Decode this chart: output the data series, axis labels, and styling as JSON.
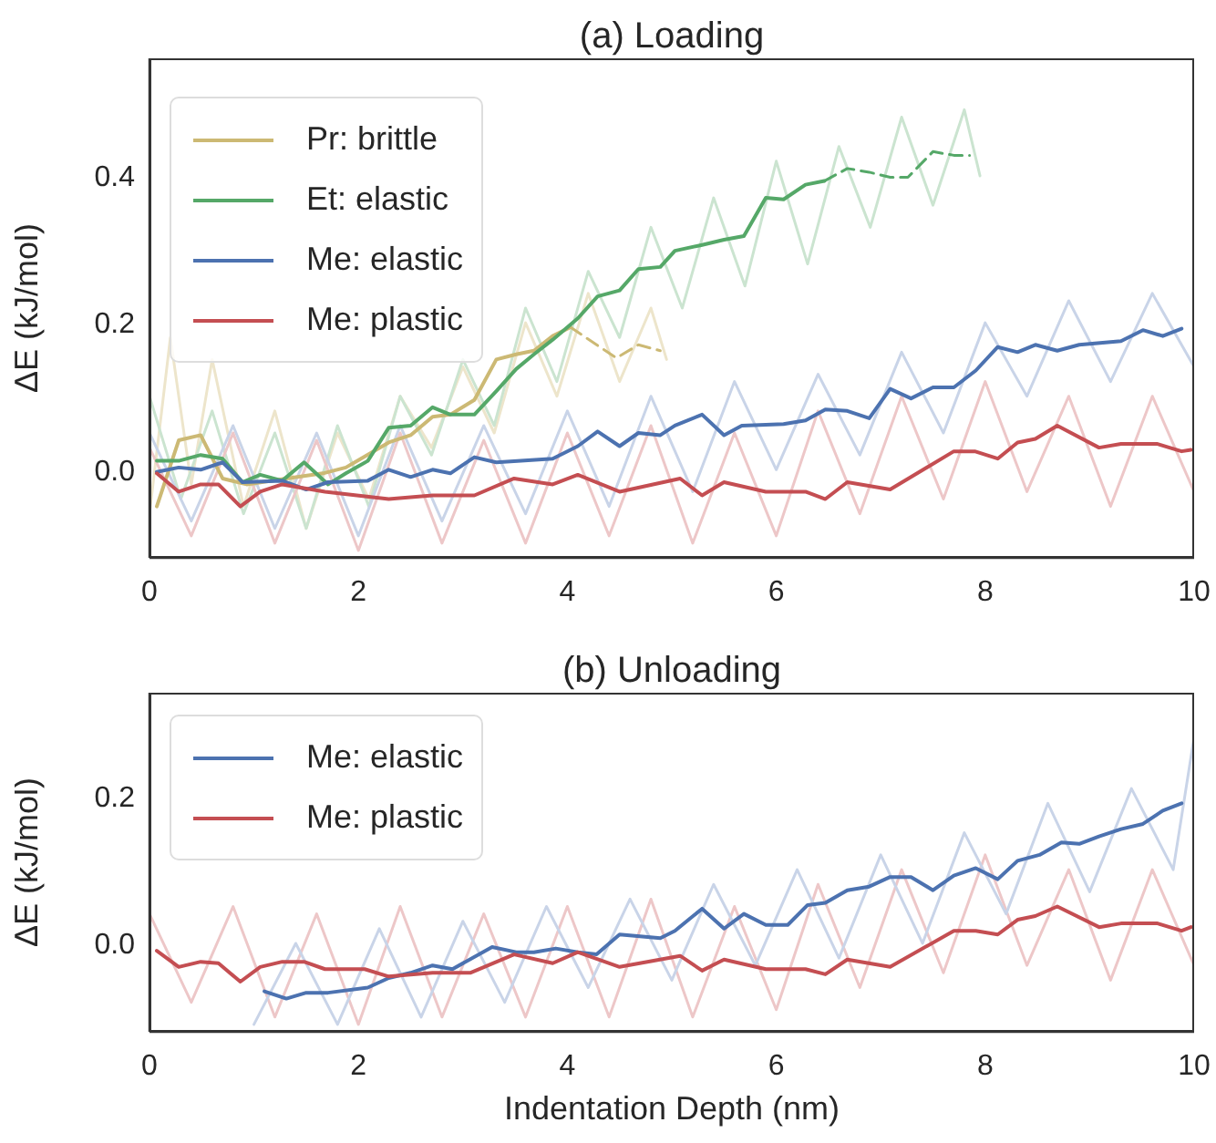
{
  "chart_data": [
    {
      "type": "line",
      "title": "(a) Loading",
      "ylabel": "ΔE (kJ/mol)",
      "xlim": [
        0,
        10
      ],
      "xticks": [
        0,
        2,
        4,
        6,
        8,
        10
      ],
      "ylim": [
        -0.12,
        0.56
      ],
      "yticks": [
        {
          "value": 0,
          "label": "0.0"
        },
        {
          "value": 0.2,
          "label": "0.2"
        },
        {
          "value": 0.4,
          "label": "0.4"
        }
      ],
      "grid": false,
      "legend": "top left",
      "marker": "none",
      "line_style": "solid",
      "series": [
        {
          "color": "#ede5cb",
          "x": [
            0,
            0.2,
            0.4,
            0.6,
            0.9,
            1.2,
            1.5,
            1.8,
            2.1,
            2.4,
            2.7,
            3.0,
            3.3,
            3.6,
            3.9,
            4.2,
            4.5,
            4.8,
            4.95
          ],
          "values": [
            -0.06,
            0.18,
            -0.02,
            0.15,
            -0.05,
            0.08,
            -0.08,
            0.05,
            -0.04,
            0.1,
            0.03,
            0.14,
            0.05,
            0.2,
            0.1,
            0.24,
            0.12,
            0.22,
            0.15
          ]
        },
        {
          "color": "#cbe4d0",
          "x": [
            0,
            0.3,
            0.6,
            0.9,
            1.2,
            1.5,
            1.8,
            2.1,
            2.4,
            2.7,
            3.0,
            3.3,
            3.6,
            3.9,
            4.2,
            4.5,
            4.8,
            5.1,
            5.4,
            5.7,
            6.0,
            6.3,
            6.6,
            6.9,
            7.2,
            7.5,
            7.8,
            7.95
          ],
          "values": [
            0.1,
            -0.04,
            0.08,
            -0.06,
            0.05,
            -0.08,
            0.06,
            -0.05,
            0.1,
            0.02,
            0.15,
            0.06,
            0.22,
            0.12,
            0.27,
            0.18,
            0.33,
            0.22,
            0.37,
            0.25,
            0.42,
            0.28,
            0.44,
            0.33,
            0.48,
            0.36,
            0.49,
            0.4
          ]
        },
        {
          "color": "#c9d4e8",
          "x": [
            0,
            0.4,
            0.8,
            1.2,
            1.6,
            2.0,
            2.4,
            2.8,
            3.2,
            3.6,
            4.0,
            4.4,
            4.8,
            5.2,
            5.6,
            6.0,
            6.4,
            6.8,
            7.2,
            7.6,
            8.0,
            8.4,
            8.8,
            9.2,
            9.6,
            10.0
          ],
          "values": [
            0.05,
            -0.07,
            0.06,
            -0.08,
            0.05,
            -0.09,
            0.06,
            -0.07,
            0.06,
            -0.06,
            0.08,
            -0.05,
            0.1,
            -0.03,
            0.12,
            0.0,
            0.13,
            0.02,
            0.16,
            0.05,
            0.2,
            0.1,
            0.23,
            0.12,
            0.24,
            0.14
          ]
        },
        {
          "color": "#edc7c8",
          "x": [
            0,
            0.4,
            0.8,
            1.2,
            1.6,
            2.0,
            2.4,
            2.8,
            3.2,
            3.6,
            4.0,
            4.4,
            4.8,
            5.2,
            5.6,
            6.0,
            6.4,
            6.8,
            7.2,
            7.6,
            8.0,
            8.4,
            8.8,
            9.2,
            9.6,
            10.0
          ],
          "values": [
            0.03,
            -0.09,
            0.05,
            -0.1,
            0.04,
            -0.11,
            0.05,
            -0.1,
            0.04,
            -0.1,
            0.05,
            -0.09,
            0.06,
            -0.1,
            0.05,
            -0.09,
            0.08,
            -0.06,
            0.1,
            -0.04,
            0.12,
            -0.03,
            0.1,
            -0.05,
            0.1,
            -0.03
          ]
        },
        {
          "name": "Pr: brittle",
          "color": "#ccb974",
          "x": [
            0.07,
            0.28,
            0.49,
            0.7,
            0.93,
            1.31,
            1.66,
            1.88,
            2.29,
            2.5,
            2.71,
            2.88,
            3.11,
            3.32,
            3.51,
            3.68,
            3.86,
            4.03
          ],
          "values": [
            -0.05,
            0.04,
            0.047,
            -0.012,
            -0.02,
            -0.012,
            -0.005,
            0.003,
            0.037,
            0.047,
            0.072,
            0.075,
            0.095,
            0.15,
            0.157,
            0.162,
            0.182,
            0.194
          ]
        },
        {
          "color": "#ccb974",
          "line_style": "dashed",
          "x": [
            4.03,
            4.28,
            4.47,
            4.68,
            4.89
          ],
          "values": [
            0.194,
            0.17,
            0.152,
            0.17,
            0.162
          ]
        },
        {
          "name": "Et: elastic",
          "color": "#55a868",
          "x": [
            0.07,
            0.28,
            0.49,
            0.7,
            0.89,
            1.06,
            1.27,
            1.48,
            1.71,
            1.88,
            2.09,
            2.29,
            2.5,
            2.71,
            2.88,
            3.11,
            3.32,
            3.51,
            3.68,
            3.86,
            4.1,
            4.29,
            4.5,
            4.68,
            4.89,
            5.03,
            5.29,
            5.5,
            5.69,
            5.9,
            6.07,
            6.28,
            6.46
          ],
          "values": [
            0.012,
            0.012,
            0.02,
            0.015,
            -0.017,
            -0.007,
            -0.015,
            0.01,
            -0.02,
            -0.005,
            0.012,
            0.057,
            0.06,
            0.085,
            0.075,
            0.075,
            0.107,
            0.137,
            0.157,
            0.177,
            0.206,
            0.236,
            0.244,
            0.273,
            0.276,
            0.298,
            0.306,
            0.313,
            0.318,
            0.37,
            0.368,
            0.388,
            0.393
          ]
        },
        {
          "color": "#55a868",
          "line_style": "dashed",
          "x": [
            6.46,
            6.68,
            6.89,
            7.09,
            7.26,
            7.5,
            7.7,
            7.85
          ],
          "values": [
            0.393,
            0.41,
            0.405,
            0.398,
            0.398,
            0.433,
            0.428,
            0.428
          ]
        },
        {
          "name": "Me: elastic",
          "color": "#4c72b0",
          "x": [
            0.07,
            0.28,
            0.49,
            0.7,
            0.89,
            1.27,
            1.5,
            1.71,
            2.09,
            2.29,
            2.5,
            2.71,
            2.88,
            3.11,
            3.32,
            3.86,
            4.1,
            4.29,
            4.5,
            4.68,
            4.89,
            5.03,
            5.29,
            5.5,
            5.67,
            6.07,
            6.28,
            6.47,
            6.68,
            6.89,
            7.09,
            7.29,
            7.5,
            7.7,
            7.91,
            8.12,
            8.31,
            8.48,
            8.69,
            8.9,
            9.3,
            9.51,
            9.7,
            9.88
          ],
          "values": [
            -0.003,
            0.003,
            0,
            0.01,
            -0.017,
            -0.015,
            -0.027,
            -0.017,
            -0.015,
            0,
            -0.01,
            0,
            -0.005,
            0.017,
            0.01,
            0.015,
            0.032,
            0.052,
            0.032,
            0.05,
            0.047,
            0.06,
            0.075,
            0.047,
            0.06,
            0.062,
            0.067,
            0.082,
            0.08,
            0.07,
            0.11,
            0.097,
            0.112,
            0.112,
            0.135,
            0.167,
            0.16,
            0.17,
            0.162,
            0.17,
            0.175,
            0.19,
            0.182,
            0.192
          ]
        },
        {
          "name": "Me: plastic",
          "color": "#c44e52",
          "x": [
            0.07,
            0.28,
            0.49,
            0.66,
            0.87,
            1.06,
            1.27,
            1.68,
            2.29,
            2.71,
            3.11,
            3.49,
            3.86,
            4.1,
            4.5,
            5.08,
            5.29,
            5.5,
            5.9,
            6.28,
            6.47,
            6.68,
            7.09,
            7.7,
            7.9,
            8.12,
            8.31,
            8.48,
            8.69,
            9.09,
            9.3,
            9.65,
            9.88,
            9.97
          ],
          "values": [
            -0.005,
            -0.03,
            -0.02,
            -0.02,
            -0.05,
            -0.03,
            -0.02,
            -0.03,
            -0.04,
            -0.035,
            -0.035,
            -0.012,
            -0.02,
            -0.007,
            -0.03,
            -0.012,
            -0.035,
            -0.017,
            -0.03,
            -0.03,
            -0.04,
            -0.017,
            -0.027,
            0.025,
            0.025,
            0.015,
            0.037,
            0.042,
            0.06,
            0.03,
            0.035,
            0.035,
            0.025,
            0.027
          ]
        }
      ]
    },
    {
      "type": "line",
      "title": "(b) Unloading",
      "xlabel": "Indentation Depth (nm)",
      "ylabel": "ΔE (kJ/mol)",
      "xlim": [
        0,
        10
      ],
      "xticks": [
        0,
        2,
        4,
        6,
        8,
        10
      ],
      "ylim": [
        -0.12,
        0.34
      ],
      "yticks": [
        {
          "value": 0,
          "label": "0.0"
        },
        {
          "value": 0.2,
          "label": "0.2"
        }
      ],
      "grid": false,
      "legend": "top left",
      "marker": "none",
      "line_style": "solid",
      "series": [
        {
          "color": "#edc7c8",
          "x": [
            0,
            0.4,
            0.8,
            1.2,
            1.6,
            2.0,
            2.4,
            2.8,
            3.2,
            3.6,
            4.0,
            4.4,
            4.8,
            5.2,
            5.6,
            6.0,
            6.4,
            6.8,
            7.2,
            7.6,
            8.0,
            8.4,
            8.8,
            9.2,
            9.6,
            10.0
          ],
          "values": [
            0.04,
            -0.08,
            0.05,
            -0.1,
            0.04,
            -0.11,
            0.05,
            -0.1,
            0.04,
            -0.1,
            0.05,
            -0.1,
            0.06,
            -0.1,
            0.05,
            -0.09,
            0.08,
            -0.06,
            0.1,
            -0.04,
            0.12,
            -0.03,
            0.1,
            -0.05,
            0.1,
            -0.03
          ]
        },
        {
          "color": "#c9d4e8",
          "x": [
            1.0,
            1.4,
            1.8,
            2.2,
            2.6,
            3.0,
            3.4,
            3.8,
            4.2,
            4.6,
            5.0,
            5.4,
            5.8,
            6.2,
            6.6,
            7.0,
            7.4,
            7.8,
            8.2,
            8.6,
            9.0,
            9.4,
            9.8,
            10.0
          ],
          "values": [
            -0.11,
            0.0,
            -0.11,
            0.02,
            -0.1,
            0.03,
            -0.08,
            0.05,
            -0.06,
            0.06,
            -0.05,
            0.08,
            -0.03,
            0.1,
            -0.02,
            0.12,
            0.0,
            0.15,
            0.04,
            0.19,
            0.07,
            0.21,
            0.1,
            0.28
          ]
        },
        {
          "name": "Me: elastic",
          "color": "#4c72b0",
          "x": [
            1.1,
            1.31,
            1.5,
            1.71,
            2.09,
            2.29,
            2.5,
            2.71,
            2.9,
            3.28,
            3.51,
            3.68,
            3.89,
            4.1,
            4.28,
            4.5,
            4.89,
            5.03,
            5.29,
            5.5,
            5.69,
            5.9,
            6.11,
            6.3,
            6.47,
            6.68,
            6.89,
            7.09,
            7.29,
            7.5,
            7.7,
            7.91,
            8.12,
            8.31,
            8.52,
            8.73,
            8.9,
            9.09,
            9.3,
            9.51,
            9.7,
            9.88
          ],
          "values": [
            -0.065,
            -0.075,
            -0.067,
            -0.067,
            -0.06,
            -0.047,
            -0.04,
            -0.03,
            -0.035,
            -0.005,
            -0.012,
            -0.012,
            -0.007,
            -0.012,
            -0.015,
            0.012,
            0.007,
            0.017,
            0.047,
            0.02,
            0.04,
            0.025,
            0.025,
            0.052,
            0.055,
            0.072,
            0.077,
            0.09,
            0.09,
            0.072,
            0.092,
            0.102,
            0.087,
            0.112,
            0.12,
            0.137,
            0.135,
            0.145,
            0.155,
            0.162,
            0.18,
            0.19
          ]
        },
        {
          "name": "Me: plastic",
          "color": "#c44e52",
          "x": [
            0.07,
            0.28,
            0.49,
            0.66,
            0.87,
            1.06,
            1.27,
            1.48,
            1.68,
            2.06,
            2.29,
            2.71,
            3.07,
            3.49,
            3.86,
            4.1,
            4.5,
            5.08,
            5.29,
            5.5,
            5.9,
            6.28,
            6.47,
            6.68,
            7.09,
            7.7,
            7.91,
            8.12,
            8.31,
            8.48,
            8.69,
            9.09,
            9.3,
            9.65,
            9.88,
            9.97
          ],
          "values": [
            -0.01,
            -0.032,
            -0.025,
            -0.027,
            -0.052,
            -0.032,
            -0.025,
            -0.025,
            -0.035,
            -0.035,
            -0.045,
            -0.04,
            -0.04,
            -0.015,
            -0.027,
            -0.012,
            -0.032,
            -0.017,
            -0.037,
            -0.022,
            -0.035,
            -0.035,
            -0.042,
            -0.022,
            -0.032,
            0.017,
            0.017,
            0.012,
            0.032,
            0.037,
            0.05,
            0.022,
            0.027,
            0.027,
            0.017,
            0.022
          ]
        }
      ]
    }
  ]
}
